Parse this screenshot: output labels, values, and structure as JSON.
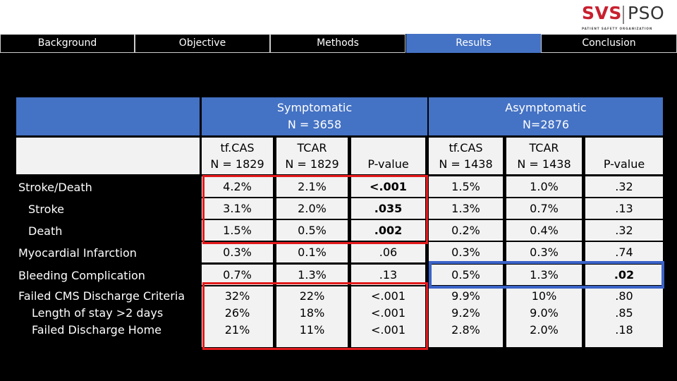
{
  "nav": [
    "Background",
    "Objective",
    "Methods",
    "Results",
    "Conclusion"
  ],
  "active_tab": "Results",
  "logo": {
    "left": "SVS",
    "right": "PSO",
    "sub": "PATIENT SAFETY ORGANIZATION"
  },
  "groups": [
    {
      "line1": "Symptomatic",
      "line2": "N = 3658"
    },
    {
      "line1": "Asymptomatic",
      "line2": "N=2876"
    }
  ],
  "col_headers": [
    {
      "line1": "tf.CAS",
      "line2": "N = 1829"
    },
    {
      "line1": "TCAR",
      "line2": "N = 1829"
    },
    {
      "line1": "",
      "line2": "P-value"
    },
    {
      "line1": "tf.CAS",
      "line2": "N = 1438"
    },
    {
      "line1": "TCAR",
      "line2": "N = 1438"
    },
    {
      "line1": "",
      "line2": "P-value"
    }
  ],
  "rows": [
    {
      "label": "Stroke/Death",
      "indent": false,
      "values": [
        "4.2%",
        "2.1%",
        "<.001",
        "1.5%",
        "1.0%",
        ".32"
      ]
    },
    {
      "label": "Stroke",
      "indent": true,
      "values": [
        "3.1%",
        "2.0%",
        ".035",
        "1.3%",
        "0.7%",
        ".13"
      ]
    },
    {
      "label": "Death",
      "indent": true,
      "values": [
        "1.5%",
        "0.5%",
        ".002",
        "0.2%",
        "0.4%",
        ".32"
      ]
    },
    {
      "label": "Myocardial Infarction",
      "indent": false,
      "values": [
        "0.3%",
        "0.1%",
        ".06",
        "0.3%",
        "0.3%",
        ".74"
      ]
    },
    {
      "label": "Bleeding Complication",
      "indent": false,
      "values": [
        "0.7%",
        "1.3%",
        ".13",
        "0.5%",
        "1.3%",
        ".02"
      ]
    }
  ],
  "multi_row": {
    "labels": [
      "Failed CMS Discharge Criteria",
      "Length of stay >2 days",
      "Failed Discharge Home"
    ],
    "values": [
      [
        "32%",
        "26%",
        "21%"
      ],
      [
        "22%",
        "18%",
        "11%"
      ],
      [
        "<.001",
        "<.001",
        "<.001"
      ],
      [
        "9.9%",
        "9.2%",
        "2.8%"
      ],
      [
        "10%",
        "9.0%",
        "2.0%"
      ],
      [
        ".80",
        ".85",
        ".18"
      ]
    ]
  },
  "colors": {
    "header_blue": "#4472c4",
    "cell_bg": "#f2f2f2",
    "highlight_red": "#e31a1c",
    "highlight_blue": "#3b63c8",
    "logo_red": "#c8202f"
  }
}
